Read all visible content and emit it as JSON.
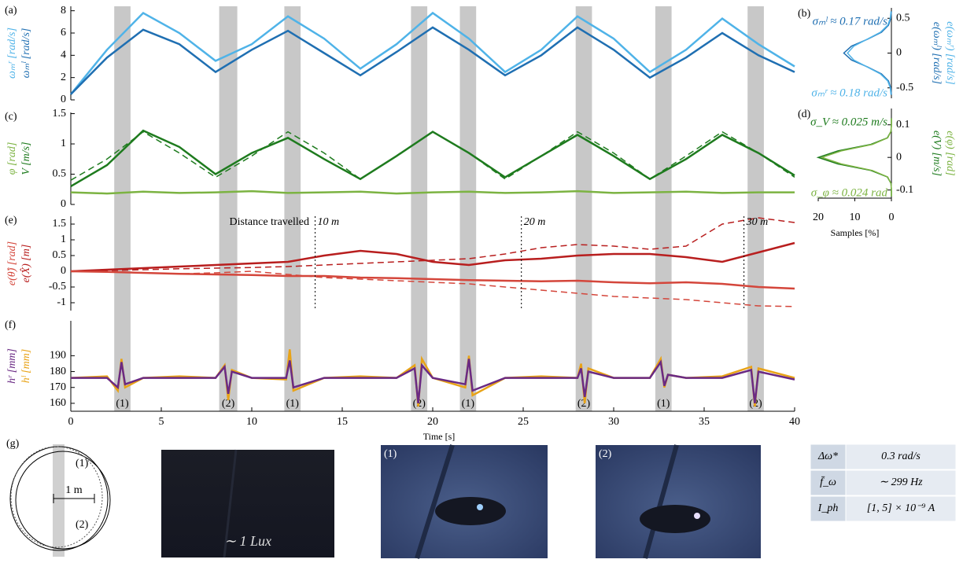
{
  "chart_data": [
    {
      "type": "line",
      "label": "(a)",
      "x": [
        0,
        2,
        4,
        6,
        8,
        10,
        12,
        14,
        16,
        18,
        20,
        22,
        24,
        26,
        28,
        30,
        32,
        34,
        36,
        38,
        40
      ],
      "xlim": [
        0,
        40
      ],
      "ylim": [
        0,
        8.4
      ],
      "yticks": [
        0,
        2,
        4,
        6,
        8
      ],
      "ylabels": [
        {
          "text": "ωₘʳ [rad/s]",
          "color": "#4fb3e8"
        },
        {
          "text": "ωₘˡ [rad/s]",
          "color": "#1f6fb2"
        }
      ],
      "series": [
        {
          "color": "#4fb3e8",
          "values": [
            0.5,
            4.5,
            7.8,
            6,
            3.5,
            5,
            7.5,
            5.5,
            2.8,
            5,
            7.8,
            5.5,
            2.5,
            4.5,
            7.5,
            5.5,
            2.5,
            4.5,
            7.3,
            5,
            3
          ]
        },
        {
          "color": "#1f6fb2",
          "values": [
            0.5,
            3.8,
            6.3,
            5,
            2.5,
            4.5,
            6.2,
            4.2,
            2.2,
            4.3,
            6.5,
            4.5,
            2.2,
            4,
            6.5,
            4.5,
            2,
            3.8,
            6,
            4,
            2.5
          ]
        }
      ]
    },
    {
      "type": "density",
      "label": "(b)",
      "y": [
        -0.6,
        -0.5,
        -0.4,
        -0.3,
        -0.2,
        -0.1,
        0,
        0.1,
        0.2,
        0.3,
        0.4,
        0.5,
        0.6
      ],
      "xlim": [
        20,
        0
      ],
      "ylim": [
        -0.65,
        0.65
      ],
      "yticks": [
        -0.5,
        0,
        0.5
      ],
      "ylabels": [
        {
          "text": "e(ωₘˡ) [rad/s]",
          "color": "#1f6fb2"
        },
        {
          "text": "e(ωₘʳ) [rad/s]",
          "color": "#4fb3e8"
        }
      ],
      "annotations": [
        {
          "text": "σₘˡ ≈ 0.17 rad/s",
          "color": "#1f6fb2"
        },
        {
          "text": "σₘʳ ≈ 0.18 rad/s",
          "color": "#4fb3e8"
        }
      ],
      "series": [
        {
          "color": "#1f6fb2",
          "values": [
            0,
            0.2,
            0.8,
            2.7,
            6.5,
            10.9,
            13,
            10.9,
            6.5,
            2.7,
            0.8,
            0.2,
            0
          ]
        },
        {
          "color": "#4fb3e8",
          "values": [
            0.1,
            0.3,
            1,
            3,
            6.6,
            10.3,
            12,
            10.3,
            6.6,
            3,
            1,
            0.3,
            0.1
          ]
        }
      ]
    },
    {
      "type": "line",
      "label": "(c)",
      "x": [
        0,
        2,
        4,
        6,
        8,
        10,
        12,
        14,
        16,
        18,
        20,
        22,
        24,
        26,
        28,
        30,
        32,
        34,
        36,
        38,
        40
      ],
      "xlim": [
        0,
        40
      ],
      "ylim": [
        0,
        1.52
      ],
      "yticks": [
        0,
        0.5,
        1,
        1.5
      ],
      "ylabels": [
        {
          "text": "φ [rad]",
          "color": "#7cb342"
        },
        {
          "text": "V [m/s]",
          "color": "#1e7b1e"
        }
      ],
      "series": [
        {
          "color": "#1e7b1e",
          "values": [
            0.3,
            0.65,
            1.22,
            0.95,
            0.5,
            0.85,
            1.1,
            0.75,
            0.42,
            0.8,
            1.2,
            0.85,
            0.45,
            0.8,
            1.15,
            0.8,
            0.42,
            0.75,
            1.15,
            0.85,
            0.48
          ]
        },
        {
          "color": "#1e7b1e",
          "dash": true,
          "values": [
            0.4,
            0.75,
            1.2,
            0.85,
            0.45,
            0.8,
            1.2,
            0.85,
            0.42,
            0.8,
            1.2,
            0.85,
            0.42,
            0.8,
            1.2,
            0.85,
            0.42,
            0.8,
            1.2,
            0.85,
            0.45
          ]
        },
        {
          "color": "#7cb342",
          "values": [
            0.2,
            0.18,
            0.21,
            0.19,
            0.2,
            0.22,
            0.19,
            0.2,
            0.21,
            0.18,
            0.2,
            0.21,
            0.19,
            0.2,
            0.22,
            0.19,
            0.2,
            0.21,
            0.19,
            0.2,
            0.2
          ]
        }
      ]
    },
    {
      "type": "density",
      "label": "(d)",
      "y": [
        -0.12,
        -0.1,
        -0.08,
        -0.06,
        -0.04,
        -0.02,
        0,
        0.02,
        0.04,
        0.06,
        0.08,
        0.1,
        0.12
      ],
      "xlim": [
        20,
        0
      ],
      "ylim": [
        -0.125,
        0.15
      ],
      "yticks": [
        -0.1,
        0,
        0.1
      ],
      "xticks": [
        20,
        10,
        0
      ],
      "xlabel": "Samples [%]",
      "ylabels": [
        {
          "text": "e(V) [m/s]",
          "color": "#1e7b1e"
        },
        {
          "text": "e(φ) [rad]",
          "color": "#7cb342"
        }
      ],
      "annotations": [
        {
          "text": "σ_V ≈ 0.025 m/s",
          "color": "#1e7b1e"
        },
        {
          "text": "σ_φ ≈ 0.024 rad",
          "color": "#7cb342"
        }
      ],
      "series": [
        {
          "color": "#1e7b1e",
          "values": [
            0,
            0,
            0.1,
            1.1,
            5.6,
            14.6,
            20,
            14.6,
            5.6,
            1.1,
            0.1,
            0,
            0
          ]
        },
        {
          "color": "#7cb342",
          "values": [
            0,
            0,
            0.1,
            1,
            5.2,
            13.7,
            19,
            13.7,
            5.2,
            1,
            0.1,
            0,
            0
          ]
        }
      ]
    },
    {
      "type": "line",
      "label": "(e)",
      "x": [
        0,
        2,
        4,
        6,
        8,
        10,
        12,
        14,
        16,
        18,
        20,
        22,
        24,
        26,
        28,
        30,
        32,
        34,
        36,
        38,
        40
      ],
      "xlim": [
        0,
        40
      ],
      "ylim": [
        -1.25,
        1.75
      ],
      "yticks": [
        -1,
        -0.5,
        0,
        0.5,
        1,
        1.5
      ],
      "ylabels": [
        {
          "text": "e(θ̂) [rad]",
          "color": "#d4463b"
        },
        {
          "text": "e(X̂) [m]",
          "color": "#b81e1e"
        }
      ],
      "note": "Distance travelled",
      "annotations": [
        {
          "x": 13.5,
          "label": "10 m"
        },
        {
          "x": 24.9,
          "label": "20 m"
        },
        {
          "x": 37.2,
          "label": "30 m"
        }
      ],
      "series": [
        {
          "color": "#b81e1e",
          "values": [
            0,
            0.05,
            0.1,
            0.15,
            0.2,
            0.25,
            0.3,
            0.5,
            0.65,
            0.55,
            0.3,
            0.2,
            0.35,
            0.4,
            0.5,
            0.55,
            0.55,
            0.45,
            0.3,
            0.6,
            0.9
          ]
        },
        {
          "color": "#b81e1e",
          "dash": true,
          "values": [
            0,
            0.02,
            0.05,
            0.08,
            0.1,
            0.12,
            0.15,
            0.2,
            0.25,
            0.3,
            0.35,
            0.4,
            0.55,
            0.75,
            0.85,
            0.8,
            0.7,
            0.8,
            1.5,
            1.7,
            1.55
          ]
        },
        {
          "color": "#d4463b",
          "values": [
            0,
            -0.02,
            -0.05,
            -0.08,
            -0.1,
            -0.12,
            -0.15,
            -0.15,
            -0.2,
            -0.22,
            -0.25,
            -0.28,
            -0.3,
            -0.32,
            -0.3,
            -0.35,
            -0.38,
            -0.35,
            -0.4,
            -0.5,
            -0.55
          ]
        },
        {
          "color": "#d4463b",
          "dash": true,
          "values": [
            0,
            -0.02,
            -0.05,
            -0.08,
            -0.05,
            0,
            -0.1,
            -0.2,
            -0.25,
            -0.3,
            -0.35,
            -0.4,
            -0.5,
            -0.6,
            -0.7,
            -0.8,
            -0.85,
            -0.9,
            -1,
            -1.1,
            -1.12
          ]
        }
      ]
    },
    {
      "type": "line",
      "label": "(f)",
      "x": [
        0,
        2,
        2.6,
        2.8,
        3,
        4,
        6,
        8,
        8.5,
        8.7,
        8.9,
        10,
        11.9,
        12.1,
        12.3,
        14,
        16,
        18,
        19,
        19.2,
        19.4,
        20,
        21.8,
        22,
        22.2,
        24,
        26,
        28,
        28.2,
        28.4,
        28.6,
        30,
        32,
        32.6,
        32.8,
        33,
        34,
        36,
        37.6,
        37.8,
        38,
        40
      ],
      "xlim": [
        0,
        40
      ],
      "xticks": [
        0,
        5,
        10,
        15,
        20,
        25,
        30,
        35,
        40
      ],
      "xlabel": "Time [s]",
      "ylim": [
        155,
        212
      ],
      "yticks": [
        160,
        170,
        180,
        190
      ],
      "ylabels": [
        {
          "text": "hʳ [mm]",
          "color": "#6a2a84"
        },
        {
          "text": "hˡ [mm]",
          "color": "#e8a317"
        }
      ],
      "series": [
        {
          "color": "#e8a317",
          "values": [
            176,
            177,
            168,
            188,
            170,
            176,
            177,
            176,
            184,
            162,
            181,
            176,
            175,
            194,
            168,
            176,
            177,
            176,
            184,
            158,
            188,
            176,
            170,
            190,
            165,
            176,
            177,
            176,
            185,
            160,
            182,
            176,
            176,
            188,
            170,
            178,
            176,
            177,
            183,
            158,
            182,
            176
          ]
        },
        {
          "color": "#6a2a84",
          "values": [
            176,
            176,
            170,
            186,
            172,
            176,
            176,
            176,
            183,
            166,
            180,
            176,
            176,
            187,
            170,
            176,
            176,
            176,
            182,
            160,
            184,
            176,
            172,
            188,
            168,
            176,
            176,
            176,
            182,
            164,
            180,
            176,
            176,
            186,
            171,
            178,
            176,
            176,
            181,
            160,
            180,
            175
          ]
        }
      ]
    }
  ],
  "highlights": [
    {
      "start": 2.4,
      "end": 3.3,
      "label": "(1)"
    },
    {
      "start": 8.2,
      "end": 9.2,
      "label": "(2)"
    },
    {
      "start": 11.8,
      "end": 12.7,
      "label": "(1)"
    },
    {
      "start": 18.8,
      "end": 19.7,
      "label": "(2)"
    },
    {
      "start": 21.5,
      "end": 22.4,
      "label": "(1)"
    },
    {
      "start": 27.9,
      "end": 28.8,
      "label": "(2)"
    },
    {
      "start": 32.3,
      "end": 33.2,
      "label": "(1)"
    },
    {
      "start": 37.4,
      "end": 38.3,
      "label": "(2)"
    }
  ],
  "trajectory": {
    "label": "(g)",
    "marks": [
      "(1)",
      "(2)"
    ],
    "scale": "1 m"
  },
  "photos": [
    {
      "caption": "∼ 1 Lux"
    },
    {
      "caption": "(1)"
    },
    {
      "caption": "(2)"
    }
  ],
  "table": {
    "rows": [
      [
        "Δω*",
        "0.3 rad/s"
      ],
      [
        "f̄_ω",
        "∼ 299 Hz"
      ],
      [
        "I_ph",
        "[1, 5] × 10⁻⁹ A"
      ]
    ]
  }
}
